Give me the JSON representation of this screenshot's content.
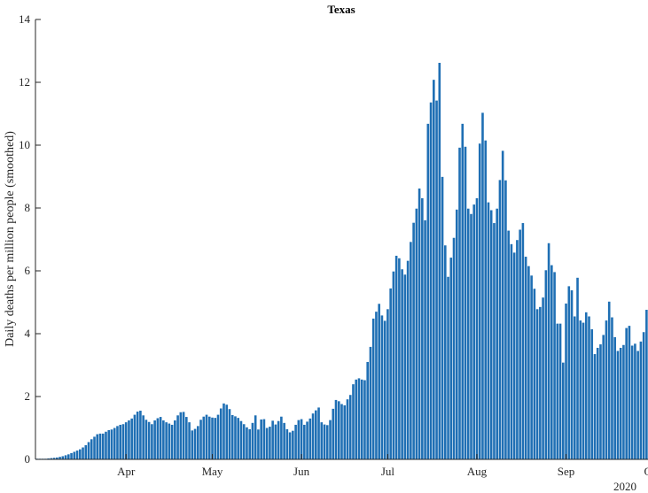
{
  "chart_data": {
    "type": "bar",
    "title": "Texas",
    "xlabel": "",
    "ylabel": "Daily deaths per million people (smoothed)",
    "ylim": [
      0,
      14
    ],
    "yticks": [
      0,
      2,
      4,
      6,
      8,
      10,
      12,
      14
    ],
    "x_start": "2020-03-01",
    "xticks": [
      {
        "label": "Apr",
        "date": "2020-04-01"
      },
      {
        "label": "May",
        "date": "2020-05-01"
      },
      {
        "label": "Jun",
        "date": "2020-06-01"
      },
      {
        "label": "Jul",
        "date": "2020-07-01"
      },
      {
        "label": "Aug",
        "date": "2020-08-01"
      },
      {
        "label": "Sep",
        "date": "2020-09-01"
      },
      {
        "label": "Oct",
        "date": "2020-10-01"
      }
    ],
    "year_label": "2020",
    "grid": false,
    "bar_color": "#1f6fb4",
    "values": [
      0.02,
      0.02,
      0.02,
      0.02,
      0.03,
      0.04,
      0.05,
      0.06,
      0.08,
      0.1,
      0.13,
      0.16,
      0.2,
      0.24,
      0.28,
      0.32,
      0.38,
      0.45,
      0.55,
      0.64,
      0.72,
      0.8,
      0.82,
      0.82,
      0.88,
      0.93,
      0.95,
      1.0,
      1.06,
      1.1,
      1.12,
      1.18,
      1.24,
      1.3,
      1.42,
      1.52,
      1.55,
      1.4,
      1.26,
      1.19,
      1.12,
      1.24,
      1.31,
      1.35,
      1.24,
      1.18,
      1.14,
      1.1,
      1.24,
      1.4,
      1.5,
      1.51,
      1.35,
      1.18,
      0.92,
      0.97,
      1.06,
      1.26,
      1.36,
      1.42,
      1.36,
      1.33,
      1.32,
      1.42,
      1.62,
      1.78,
      1.74,
      1.6,
      1.41,
      1.37,
      1.32,
      1.22,
      1.12,
      1.02,
      0.96,
      1.16,
      1.4,
      0.95,
      1.27,
      1.28,
      1.0,
      1.04,
      1.23,
      1.11,
      1.22,
      1.36,
      1.16,
      0.96,
      0.86,
      0.91,
      1.1,
      1.25,
      1.28,
      1.1,
      1.2,
      1.3,
      1.46,
      1.56,
      1.65,
      1.18,
      1.11,
      1.09,
      1.25,
      1.61,
      1.89,
      1.85,
      1.76,
      1.72,
      1.91,
      2.05,
      2.39,
      2.54,
      2.58,
      2.54,
      2.52,
      3.1,
      3.58,
      4.48,
      4.7,
      4.95,
      4.58,
      4.41,
      4.78,
      5.44,
      5.98,
      6.48,
      6.4,
      6.05,
      5.88,
      6.32,
      6.92,
      7.53,
      7.98,
      8.62,
      8.31,
      7.61,
      10.68,
      11.36,
      12.08,
      11.42,
      12.62,
      8.99,
      6.81,
      5.81,
      6.42,
      7.05,
      7.95,
      9.92,
      10.68,
      9.95,
      7.98,
      7.81,
      8.11,
      8.31,
      10.05,
      11.03,
      10.15,
      8.18,
      7.93,
      7.52,
      7.98,
      8.89,
      9.82,
      8.88,
      7.28,
      6.85,
      6.58,
      6.98,
      7.31,
      7.52,
      6.45,
      6.15,
      5.85,
      5.43,
      4.78,
      4.85,
      5.15,
      6.02,
      6.88,
      6.18,
      5.96,
      4.32,
      4.32,
      3.08,
      4.96,
      5.51,
      5.38,
      4.55,
      5.78,
      4.42,
      4.35,
      4.68,
      4.55,
      4.14,
      3.35,
      3.55,
      3.66,
      3.96,
      4.42,
      5.02,
      4.52,
      3.89,
      3.45,
      3.55,
      3.64,
      4.18,
      4.25,
      3.62,
      3.68,
      3.45,
      3.75,
      4.05,
      4.76
    ]
  }
}
